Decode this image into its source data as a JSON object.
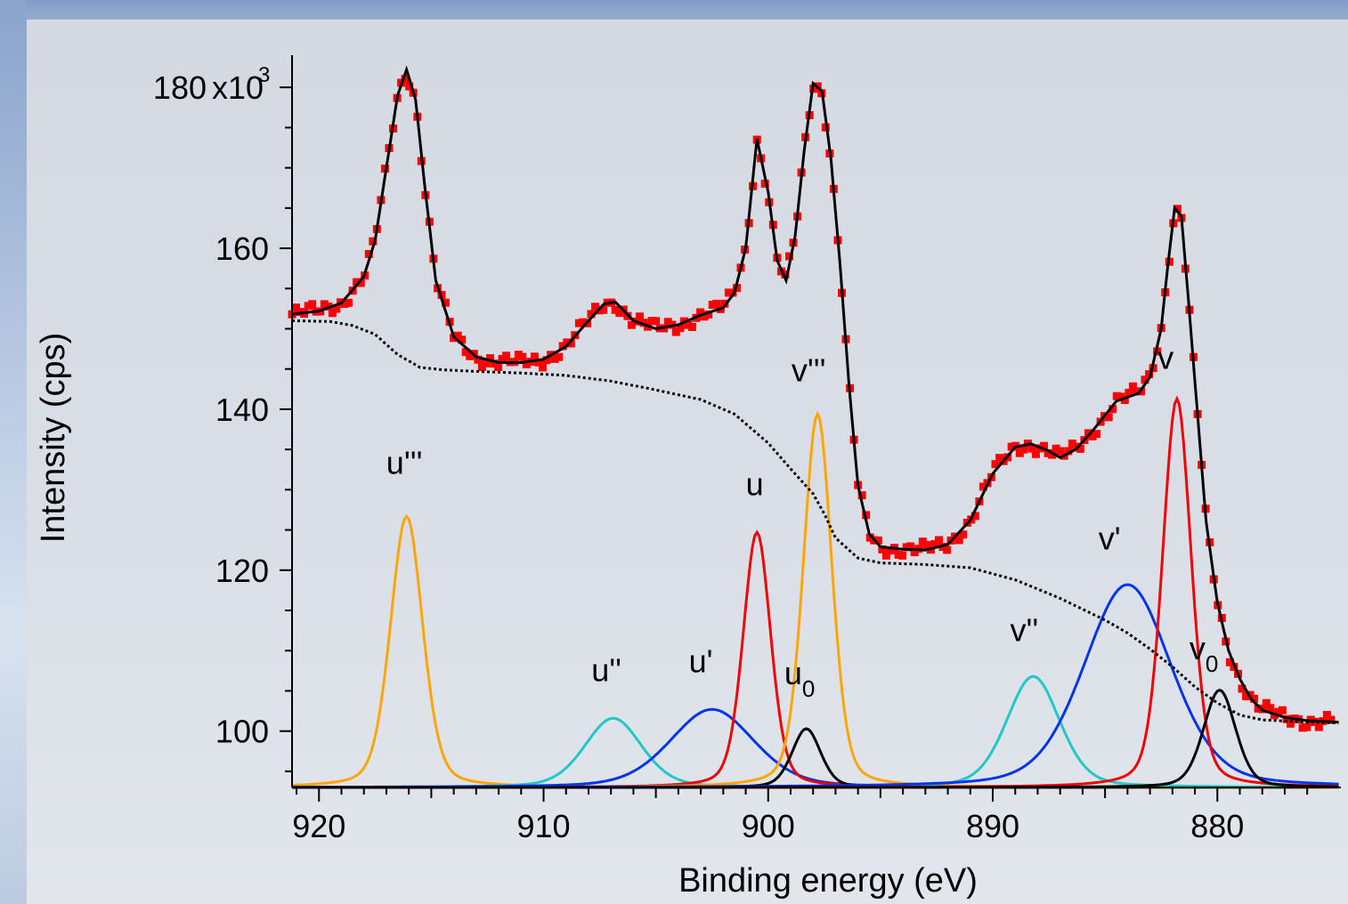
{
  "chart_data": {
    "type": "line",
    "xlabel": "Binding energy (eV)",
    "ylabel": "Intensity (cps)",
    "xlim": [
      921.2,
      874.5
    ],
    "ylim": [
      93,
      184
    ],
    "x_reversed": true,
    "x_ticks": [
      920,
      910,
      900,
      890,
      880
    ],
    "y_ticks": [
      100,
      120,
      140,
      160,
      180
    ],
    "y_tick_labels": [
      "100",
      "120",
      "140",
      "160",
      "180"
    ],
    "y_scale_label": "x10",
    "y_scale_exponent": "3",
    "background_level": 93,
    "experimental_color": "#ff0000",
    "envelope_color": "#000000",
    "background_line_color": "#000000",
    "components": [
      {
        "label": "u'''",
        "sub": "",
        "center": 916.1,
        "peak": 126.7,
        "fwhm": 1.7,
        "color": "#ffa500",
        "label_x": 916.2,
        "label_y": 132
      },
      {
        "label": "u''",
        "sub": "",
        "center": 906.9,
        "peak": 101.6,
        "fwhm": 3.0,
        "color": "#20c8c8",
        "label_x": 907.2,
        "label_y": 106.2
      },
      {
        "label": "u'",
        "sub": "",
        "center": 902.5,
        "peak": 102.7,
        "fwhm": 4.4,
        "color": "#0033ee",
        "label_x": 903.0,
        "label_y": 107.3
      },
      {
        "label": "u",
        "sub": "",
        "center": 900.5,
        "peak": 124.7,
        "fwhm": 1.45,
        "color": "#ee0000",
        "label_x": 900.6,
        "label_y": 129.3
      },
      {
        "label": "u",
        "sub": "0",
        "center": 898.3,
        "peak": 100.3,
        "fwhm": 1.5,
        "color": "#000000",
        "label_x": 898.6,
        "label_y": 105.8
      },
      {
        "label": "v'''",
        "sub": "",
        "center": 897.8,
        "peak": 139.4,
        "fwhm": 1.5,
        "color": "#ffa500",
        "label_x": 898.2,
        "label_y": 143.5
      },
      {
        "label": "v''",
        "sub": "",
        "center": 888.2,
        "peak": 106.8,
        "fwhm": 2.8,
        "color": "#20c8c8",
        "label_x": 888.6,
        "label_y": 111.2
      },
      {
        "label": "v'",
        "sub": "",
        "center": 884.0,
        "peak": 118.2,
        "fwhm": 4.6,
        "color": "#0033ee",
        "label_x": 884.8,
        "label_y": 122.6
      },
      {
        "label": "v",
        "sub": "",
        "center": 881.8,
        "peak": 141.3,
        "fwhm": 1.5,
        "color": "#ee0000",
        "label_x": 882.3,
        "label_y": 145.0
      },
      {
        "label": "v",
        "sub": "0",
        "center": 879.9,
        "peak": 105.1,
        "fwhm": 1.7,
        "color": "#000000",
        "label_x": 880.6,
        "label_y": 108.9
      }
    ],
    "background_curve": {
      "x": [
        921.2,
        919.5,
        918.5,
        917.5,
        916.5,
        915.5,
        914.5,
        913.0,
        911.0,
        909.0,
        907.0,
        905.0,
        903.0,
        901.5,
        900.0,
        899.0,
        898.0,
        897.5,
        897.0,
        896.0,
        895.0,
        893.0,
        891.0,
        889.0,
        887.0,
        885.0,
        884.0,
        883.0,
        882.0,
        881.0,
        880.0,
        879.0,
        878.0,
        876.0,
        874.5
      ],
      "y": [
        151.0,
        150.9,
        150.4,
        149.3,
        146.8,
        145.2,
        144.9,
        144.7,
        144.5,
        144.2,
        143.5,
        142.4,
        141.2,
        139.4,
        135.8,
        132.6,
        129.5,
        127.0,
        124.0,
        121.5,
        120.9,
        120.7,
        120.3,
        118.8,
        116.5,
        113.8,
        112.2,
        110.2,
        108.0,
        105.5,
        103.5,
        102.0,
        101.4,
        101.1,
        101.0
      ]
    },
    "envelope_curve": {
      "x": [
        921.2,
        920.0,
        919.0,
        918.0,
        917.5,
        917.0,
        916.5,
        916.1,
        915.7,
        915.3,
        914.8,
        914.0,
        913.0,
        912.0,
        911.0,
        910.0,
        909.0,
        908.0,
        907.3,
        906.8,
        906.0,
        905.0,
        904.0,
        903.0,
        902.0,
        901.5,
        901.0,
        900.5,
        900.0,
        899.6,
        899.2,
        898.8,
        898.4,
        898.0,
        897.6,
        897.2,
        896.8,
        896.4,
        896.0,
        895.5,
        895.0,
        894.0,
        893.0,
        892.0,
        891.0,
        890.0,
        889.0,
        888.3,
        887.5,
        887.0,
        886.3,
        885.5,
        884.5,
        883.5,
        883.0,
        882.5,
        882.2,
        881.9,
        881.6,
        881.3,
        880.9,
        880.5,
        880.0,
        879.5,
        879.0,
        878.5,
        878.0,
        877.0,
        876.0,
        874.5
      ],
      "y": [
        151.8,
        152.2,
        153.2,
        156.5,
        161.0,
        170.0,
        179.0,
        182.2,
        178.5,
        168.0,
        156.0,
        149.0,
        146.5,
        145.8,
        145.8,
        146.2,
        147.8,
        151.0,
        153.1,
        153.3,
        151.0,
        150.0,
        150.5,
        151.7,
        152.6,
        154.5,
        160.0,
        173.6,
        167.0,
        158.5,
        156.0,
        161.5,
        172.0,
        180.5,
        179.5,
        171.0,
        158.0,
        143.0,
        130.5,
        124.5,
        122.9,
        122.6,
        122.5,
        123.2,
        126.2,
        132.0,
        135.3,
        135.7,
        134.8,
        134.0,
        135.0,
        137.5,
        141.0,
        142.0,
        144.0,
        150.0,
        158.0,
        165.0,
        164.0,
        154.0,
        140.0,
        126.0,
        116.0,
        110.0,
        106.5,
        104.0,
        102.6,
        101.7,
        101.3,
        101.1
      ]
    }
  }
}
